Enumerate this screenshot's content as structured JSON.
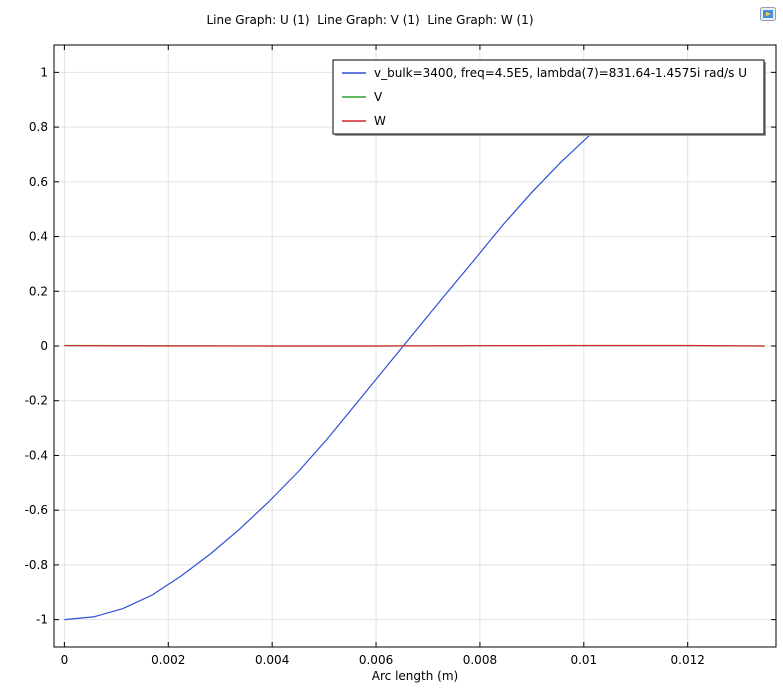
{
  "chart_data": {
    "type": "line",
    "title": "Line Graph: U (1)  Line Graph: V (1)  Line Graph: W (1)",
    "xlabel": "Arc length (m)",
    "ylabel": "",
    "xlim": [
      -0.0002,
      0.0137
    ],
    "ylim": [
      -1.1,
      1.1
    ],
    "xticks": [
      0,
      0.002,
      0.004,
      0.006,
      0.008,
      0.01,
      0.012
    ],
    "xtick_labels": [
      "0",
      "0.002",
      "0.004",
      "0.006",
      "0.008",
      "0.01",
      "0.012"
    ],
    "yticks": [
      -1,
      -0.8,
      -0.6,
      -0.4,
      -0.2,
      0,
      0.2,
      0.4,
      0.6,
      0.8,
      1
    ],
    "ytick_labels": [
      "-1",
      "-0.8",
      "-0.6",
      "-0.4",
      "-0.2",
      "0",
      "0.2",
      "0.4",
      "0.6",
      "0.8",
      "1"
    ],
    "grid": true,
    "legend_position": "top-right",
    "series": [
      {
        "name": "v_bulk=3400, freq=4.5E5, lambda(7)=831.64-1.4575i rad/s U",
        "color": "#2e4fd8",
        "x": [
          0,
          0.00056,
          0.00112,
          0.00169,
          0.00225,
          0.00281,
          0.00337,
          0.00393,
          0.0045,
          0.00506,
          0.00562,
          0.00618,
          0.00674,
          0.0073,
          0.00787,
          0.00843,
          0.00899,
          0.00955,
          0.01011,
          0.01068,
          0.01124,
          0.0118,
          0.01236,
          0.01292,
          0.01348
        ],
        "y": [
          -1.0,
          -0.99,
          -0.96,
          -0.91,
          -0.84,
          -0.76,
          -0.67,
          -0.57,
          -0.46,
          -0.34,
          -0.21,
          -0.08,
          0.05,
          0.18,
          0.31,
          0.44,
          0.56,
          0.67,
          0.77,
          0.86,
          0.92,
          0.97,
          0.99,
          1.0,
          1.0
        ]
      },
      {
        "name": "V",
        "color": "#2ca02c",
        "x": [
          0,
          0.002,
          0.004,
          0.006,
          0.008,
          0.01,
          0.012,
          0.01348
        ],
        "y": [
          0.002,
          0.001,
          0.0,
          0.0,
          0.001,
          0.001,
          0.001,
          0.0
        ]
      },
      {
        "name": "W",
        "color": "#d62728",
        "x": [
          0,
          0.002,
          0.004,
          0.006,
          0.008,
          0.01,
          0.012,
          0.01348
        ],
        "y": [
          0.001,
          0.0,
          0.0,
          0.0,
          0.001,
          0.002,
          0.002,
          0.0
        ]
      }
    ]
  }
}
